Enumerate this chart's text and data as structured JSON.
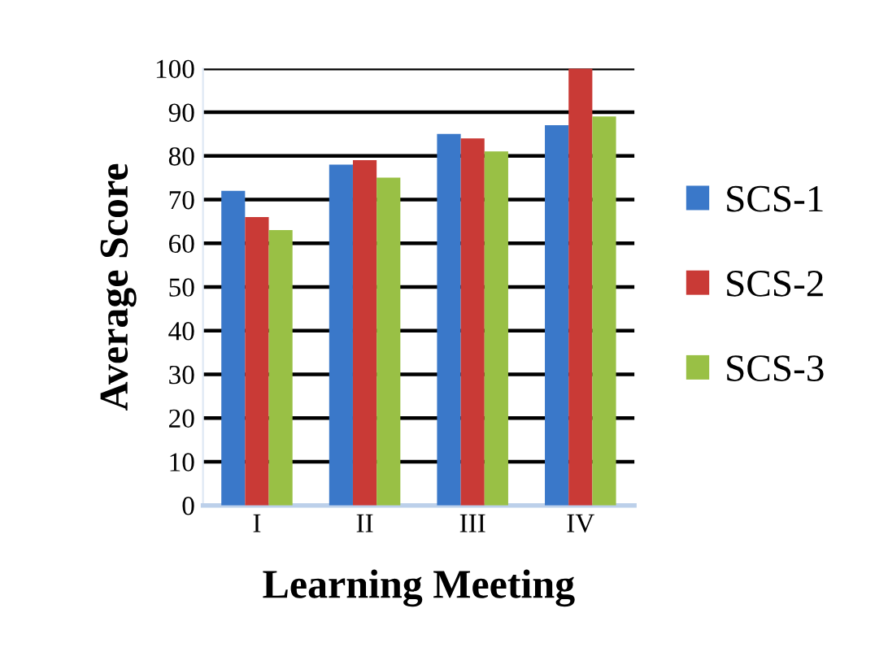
{
  "chart_data": {
    "type": "bar",
    "xlabel": "Learning Meeting",
    "ylabel": "Average Score",
    "categories": [
      "I",
      "II",
      "III",
      "IV"
    ],
    "series": [
      {
        "name": "SCS-1",
        "color": "#3a78c9",
        "values": [
          72,
          78,
          85,
          87
        ]
      },
      {
        "name": "SCS-2",
        "color": "#c93a36",
        "values": [
          66,
          79,
          84,
          100
        ]
      },
      {
        "name": "SCS-3",
        "color": "#99c045",
        "values": [
          63,
          75,
          81,
          89
        ]
      }
    ],
    "ylim": [
      0,
      100
    ],
    "yticks": [
      0,
      10,
      20,
      30,
      40,
      50,
      60,
      70,
      80,
      90,
      100
    ],
    "grid": "y",
    "legend": "right"
  }
}
